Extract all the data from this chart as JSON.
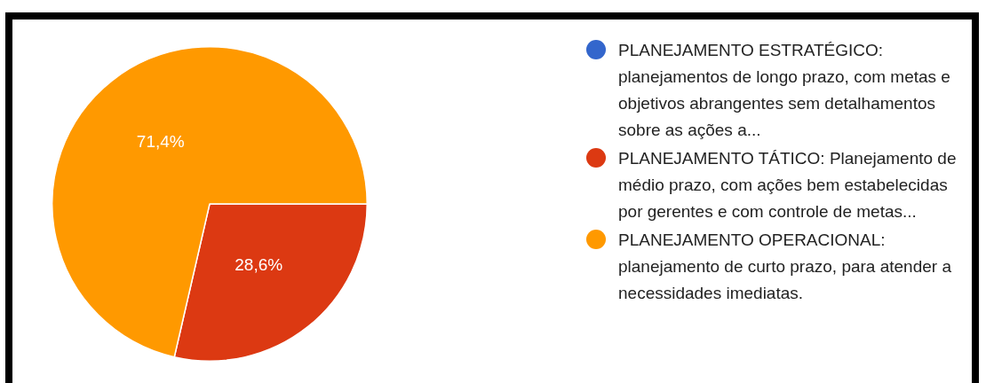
{
  "chart_data": {
    "type": "pie",
    "categories": [
      "PLANEJAMENTO ESTRATÉGICO: planejamentos de longo prazo, com metas e objetivos abrangentes sem detalhamentos sobre as ações a...",
      "PLANEJAMENTO TÁTICO: Planejamento de médio prazo, com ações bem estabelecidas por gerentes e com controle de metas...",
      "PLANEJAMENTO OPERACIONAL: planejamento de curto prazo, para atender a necessidades imediatas."
    ],
    "values": [
      0,
      28.6,
      71.4
    ],
    "colors": [
      "#3366cc",
      "#dc3912",
      "#ff9900"
    ],
    "value_labels": [
      null,
      "28,6%",
      "71,4%"
    ],
    "legend": "right"
  }
}
